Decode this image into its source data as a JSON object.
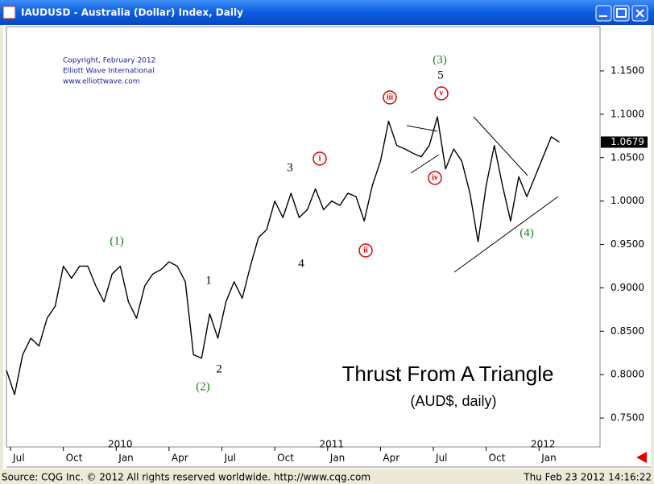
{
  "window": {
    "title": "IAUDUSD - Australia (Dollar) Index, Daily"
  },
  "status": {
    "source": "Source: CQG Inc. © 2012 All rights reserved worldwide. http://www.cqg.com",
    "time": "Thu Feb 23 2012 14:16:22"
  },
  "chart_data": {
    "type": "line",
    "copyright": [
      "Copyright, February 2012",
      "Elliott Wave International",
      "www.elliottwave.com"
    ],
    "title": "Thrust From A Triangle",
    "subtitle": "(AUD$, daily)",
    "color": "#000000",
    "x": [
      0,
      2,
      4,
      6,
      8,
      10,
      12,
      14,
      16,
      18,
      20,
      22,
      24,
      26,
      28,
      30,
      32,
      34,
      36,
      38,
      40,
      42,
      44,
      46,
      48,
      50,
      52,
      54,
      56,
      58,
      60,
      62,
      64,
      66,
      68,
      70,
      72,
      74,
      76,
      78,
      80,
      82,
      84,
      86,
      88,
      90,
      92,
      94,
      96,
      98,
      100,
      102,
      104,
      106,
      108,
      110,
      112,
      114,
      116,
      118,
      120,
      122,
      124,
      126,
      128,
      130,
      132,
      134,
      136
    ],
    "values": [
      0.805,
      0.777,
      0.823,
      0.842,
      0.833,
      0.865,
      0.879,
      0.925,
      0.911,
      0.925,
      0.925,
      0.902,
      0.884,
      0.916,
      0.925,
      0.884,
      0.865,
      0.902,
      0.916,
      0.921,
      0.93,
      0.925,
      0.907,
      0.823,
      0.819,
      0.87,
      0.842,
      0.884,
      0.907,
      0.888,
      0.925,
      0.958,
      0.967,
      1.0,
      0.981,
      1.009,
      0.981,
      0.99,
      1.014,
      0.99,
      1.0,
      0.995,
      1.009,
      1.005,
      0.977,
      1.018,
      1.046,
      1.092,
      1.064,
      1.06,
      1.055,
      1.051,
      1.064,
      1.097,
      1.037,
      1.06,
      1.046,
      1.009,
      0.953,
      1.018,
      1.064,
      1.018,
      0.977,
      1.028,
      1.005,
      1.028,
      1.051,
      1.074,
      1.0679
    ],
    "value_labels_last": "1.0679",
    "xlim": [
      0,
      146
    ],
    "xticks": [
      {
        "value": 1,
        "label": "Jul"
      },
      {
        "value": 14,
        "label": "Oct"
      },
      {
        "value": 27,
        "label": "Jan"
      },
      {
        "value": 40,
        "label": "Apr"
      },
      {
        "value": 53,
        "label": "Jul"
      },
      {
        "value": 66,
        "label": "Oct"
      },
      {
        "value": 79,
        "label": "Jan"
      },
      {
        "value": 92,
        "label": "Apr"
      },
      {
        "value": 105,
        "label": "Jul"
      },
      {
        "value": 118,
        "label": "Oct"
      },
      {
        "value": 131,
        "label": "Jan"
      }
    ],
    "year_labels": [
      {
        "value": 27,
        "label": "2010"
      },
      {
        "value": 79,
        "label": "2011"
      },
      {
        "value": 131,
        "label": "2012"
      }
    ],
    "ylim": [
      0.7167,
      1.201
    ],
    "yticks": [
      {
        "value": 0.75,
        "label": "0.7500"
      },
      {
        "value": 0.8,
        "label": "0.8000"
      },
      {
        "value": 0.85,
        "label": "0.8500"
      },
      {
        "value": 0.9,
        "label": "0.9000"
      },
      {
        "value": 0.95,
        "label": "0.9500"
      },
      {
        "value": 1.0,
        "label": "1.0000"
      },
      {
        "value": 1.05,
        "label": "1.0500"
      },
      {
        "value": 1.1,
        "label": "1.1000"
      },
      {
        "value": 1.15,
        "label": "1.1500"
      }
    ],
    "annotations": [
      {
        "text": "(1)",
        "color": "#1e7b1e"
      },
      {
        "text": "(2)",
        "color": "#1e7b1e"
      },
      {
        "text": "1",
        "color": "#000000"
      },
      {
        "text": "2",
        "color": "#000000"
      },
      {
        "text": "3",
        "color": "#000000"
      },
      {
        "text": "4",
        "color": "#000000"
      },
      {
        "text": "(3)",
        "color": "#1e7b1e"
      },
      {
        "text": "5",
        "color": "#000000"
      },
      {
        "text": "i",
        "color": "#e00000"
      },
      {
        "text": "ii",
        "color": "#e00000"
      },
      {
        "text": "iii",
        "color": "#e00000"
      },
      {
        "text": "iv",
        "color": "#e00000"
      },
      {
        "text": "v",
        "color": "#e00000"
      },
      {
        "text": "(4)",
        "color": "#1e7b1e"
      }
    ]
  }
}
